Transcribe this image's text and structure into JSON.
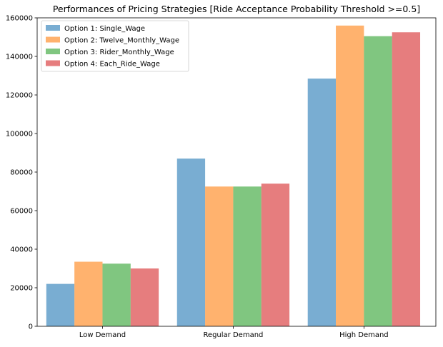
{
  "chart_data": {
    "type": "bar",
    "title": "Performances of Pricing Strategies [Ride Acceptance Probability Threshold >=0.5]",
    "xlabel": "",
    "ylabel": "",
    "categories": [
      "Low Demand",
      "Regular Demand",
      "High Demand"
    ],
    "ylim": [
      0,
      160000
    ],
    "yticks": [
      0,
      20000,
      40000,
      60000,
      80000,
      100000,
      120000,
      140000,
      160000
    ],
    "grid": false,
    "legend_position": "upper-left",
    "bar_opacity": 0.6,
    "series": [
      {
        "name": "Option 1: Single_Wage",
        "color": "#1f77b4",
        "values": [
          22000,
          87000,
          128500
        ]
      },
      {
        "name": "Option 2: Twelve_Monthly_Wage",
        "color": "#ff7f0e",
        "values": [
          33500,
          72500,
          156000
        ]
      },
      {
        "name": "Option 3: Rider_Monthly_Wage",
        "color": "#2ca02c",
        "values": [
          32500,
          72500,
          150500
        ]
      },
      {
        "name": "Option 4: Each_Ride_Wage",
        "color": "#d62728",
        "values": [
          30000,
          74000,
          152500
        ]
      }
    ]
  }
}
